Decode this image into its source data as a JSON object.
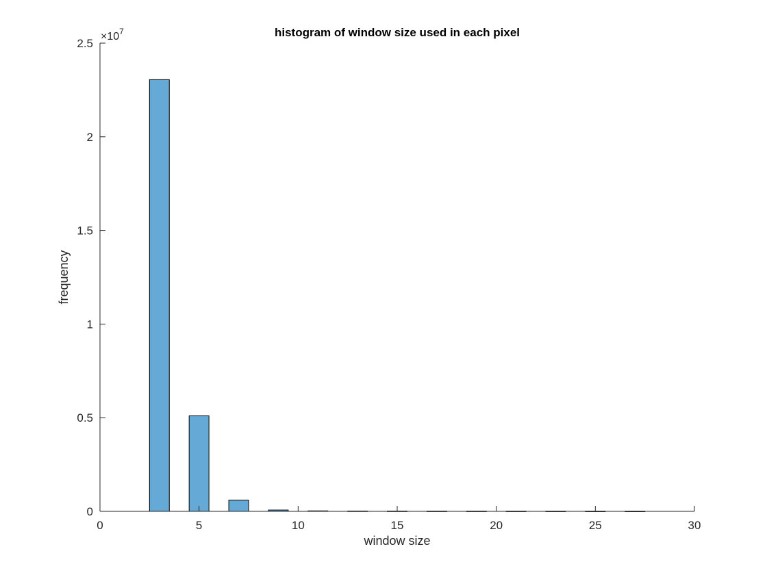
{
  "chart_data": {
    "type": "bar",
    "title": "histogram of window size used in each pixel",
    "xlabel": "window size",
    "ylabel": "frequency",
    "xlim": [
      0,
      30
    ],
    "ylim": [
      0,
      25000000
    ],
    "x_ticks": [
      0,
      5,
      10,
      15,
      20,
      25,
      30
    ],
    "y_ticks": [
      0,
      5000000,
      10000000,
      15000000,
      20000000,
      25000000
    ],
    "y_tick_labels": [
      "0",
      "0.5",
      "1",
      "1.5",
      "2",
      "2.5"
    ],
    "y_exponent_base": "×10",
    "y_exponent_power": "7",
    "bin_width": 1,
    "x": [
      3,
      5,
      7,
      9,
      11,
      13,
      15,
      17,
      19,
      21,
      23,
      25,
      27
    ],
    "values": [
      23050000,
      5100000,
      600000,
      70000,
      25000,
      15000,
      12000,
      10000,
      9000,
      8000,
      7000,
      6000,
      5000
    ],
    "bar_color": "#65a9d7",
    "bar_edge_color": "#000000",
    "grid": false,
    "legend": "none"
  }
}
